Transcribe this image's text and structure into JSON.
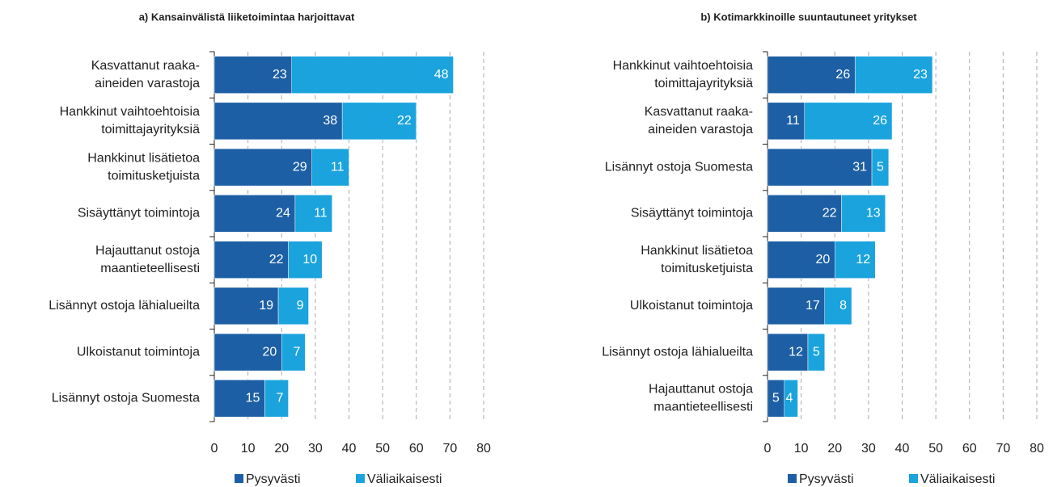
{
  "chart_data": [
    {
      "type": "bar",
      "orientation": "horizontal",
      "stacked": true,
      "title": "a) Kansainvälistä liiketoimintaa harjoittavat",
      "categories": [
        [
          "Kasvattanut raaka-",
          "aineiden varastoja"
        ],
        [
          "Hankkinut vaihtoehtoisia",
          "toimittajayrityksiä"
        ],
        [
          "Hankkinut lisätietoa",
          "toimitusketjuista"
        ],
        [
          "Sisäyttänyt toimintoja"
        ],
        [
          "Hajauttanut ostoja",
          "maantieteellisesti"
        ],
        [
          "Lisännyt ostoja lähialueilta"
        ],
        [
          "Ulkoistanut toimintoja"
        ],
        [
          "Lisännyt ostoja Suomesta"
        ]
      ],
      "series": [
        {
          "name": "Pysyvästi",
          "color": "#1d5fa5",
          "values": [
            23,
            38,
            29,
            24,
            22,
            19,
            20,
            15
          ]
        },
        {
          "name": "Väliaikaisesti",
          "color": "#1aa3dd",
          "values": [
            48,
            22,
            11,
            11,
            10,
            9,
            7,
            7
          ]
        }
      ],
      "xlim": [
        0,
        80
      ],
      "xticks": [
        0,
        10,
        20,
        30,
        40,
        50,
        60,
        70,
        80
      ],
      "grid": true
    },
    {
      "type": "bar",
      "orientation": "horizontal",
      "stacked": true,
      "title": "b) Kotimarkkinoille suuntautuneet yritykset",
      "categories": [
        [
          "Hankkinut vaihtoehtoisia",
          "toimittajayrityksiä"
        ],
        [
          "Kasvattanut raaka-",
          "aineiden varastoja"
        ],
        [
          "Lisännyt ostoja Suomesta"
        ],
        [
          "Sisäyttänyt toimintoja"
        ],
        [
          "Hankkinut lisätietoa",
          "toimitusketjuista"
        ],
        [
          "Ulkoistanut toimintoja"
        ],
        [
          "Lisännyt ostoja lähialueilta"
        ],
        [
          "Hajauttanut ostoja",
          "maantieteellisesti"
        ]
      ],
      "series": [
        {
          "name": "Pysyvästi",
          "color": "#1d5fa5",
          "values": [
            26,
            11,
            31,
            22,
            20,
            17,
            12,
            5
          ]
        },
        {
          "name": "Väliaikaisesti",
          "color": "#1aa3dd",
          "values": [
            23,
            26,
            5,
            13,
            12,
            8,
            5,
            4
          ]
        }
      ],
      "xlim": [
        0,
        80
      ],
      "xticks": [
        0,
        10,
        20,
        30,
        40,
        50,
        60,
        70,
        80
      ],
      "grid": true
    }
  ]
}
